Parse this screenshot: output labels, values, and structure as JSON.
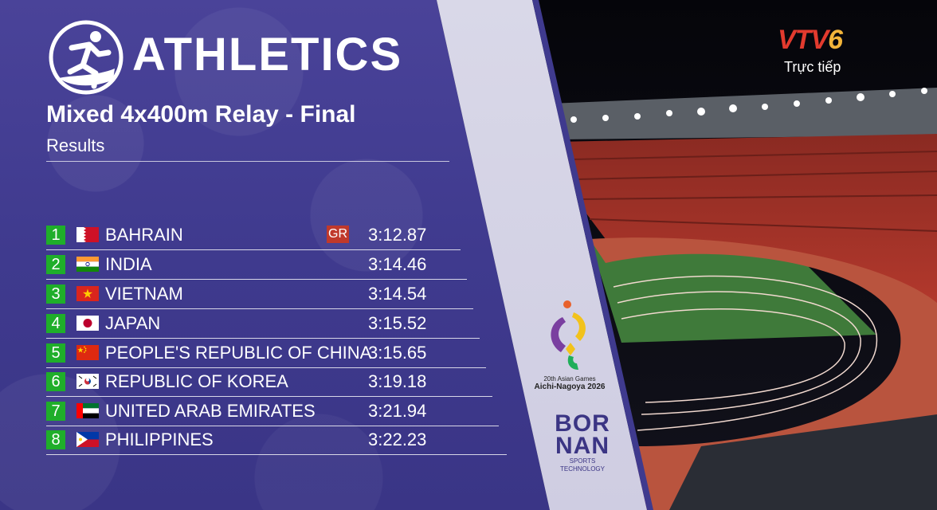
{
  "header": {
    "sport": "ATHLETICS",
    "event": "Mixed 4x400m Relay - Final",
    "subtitle": "Results"
  },
  "results": [
    {
      "rank": "1",
      "country": "BAHRAIN",
      "flag": "bahrain-flag-icon",
      "record": "GR",
      "time": "3:12.87"
    },
    {
      "rank": "2",
      "country": "INDIA",
      "flag": "india-flag-icon",
      "record": "",
      "time": "3:14.46"
    },
    {
      "rank": "3",
      "country": "VIETNAM",
      "flag": "vietnam-flag-icon",
      "record": "",
      "time": "3:14.54"
    },
    {
      "rank": "4",
      "country": "JAPAN",
      "flag": "japan-flag-icon",
      "record": "",
      "time": "3:15.52"
    },
    {
      "rank": "5",
      "country": "PEOPLE'S REPUBLIC OF CHINA",
      "flag": "china-flag-icon",
      "record": "",
      "time": "3:15.65"
    },
    {
      "rank": "6",
      "country": "REPUBLIC OF KOREA",
      "flag": "korea-flag-icon",
      "record": "",
      "time": "3:19.18"
    },
    {
      "rank": "7",
      "country": "UNITED ARAB EMIRATES",
      "flag": "uae-flag-icon",
      "record": "",
      "time": "3:21.94"
    },
    {
      "rank": "8",
      "country": "PHILIPPINES",
      "flag": "philippines-flag-icon",
      "record": "",
      "time": "3:22.23"
    }
  ],
  "games": {
    "line1": "20th Asian Games",
    "line2": "Aichi-Nagoya 2026"
  },
  "sponsor": {
    "line1": "BOR",
    "line2": "NAN",
    "line3": "SPORTS TECHNOLOGY"
  },
  "broadcast": {
    "channel_main": "VTV",
    "channel_num": "6",
    "live_label": "Trực tiếp"
  },
  "colors": {
    "panel": "#3f3a8e",
    "rank_badge": "#1fae2a",
    "record_badge": "#c0392b",
    "stripe": "#d9d8e8"
  }
}
